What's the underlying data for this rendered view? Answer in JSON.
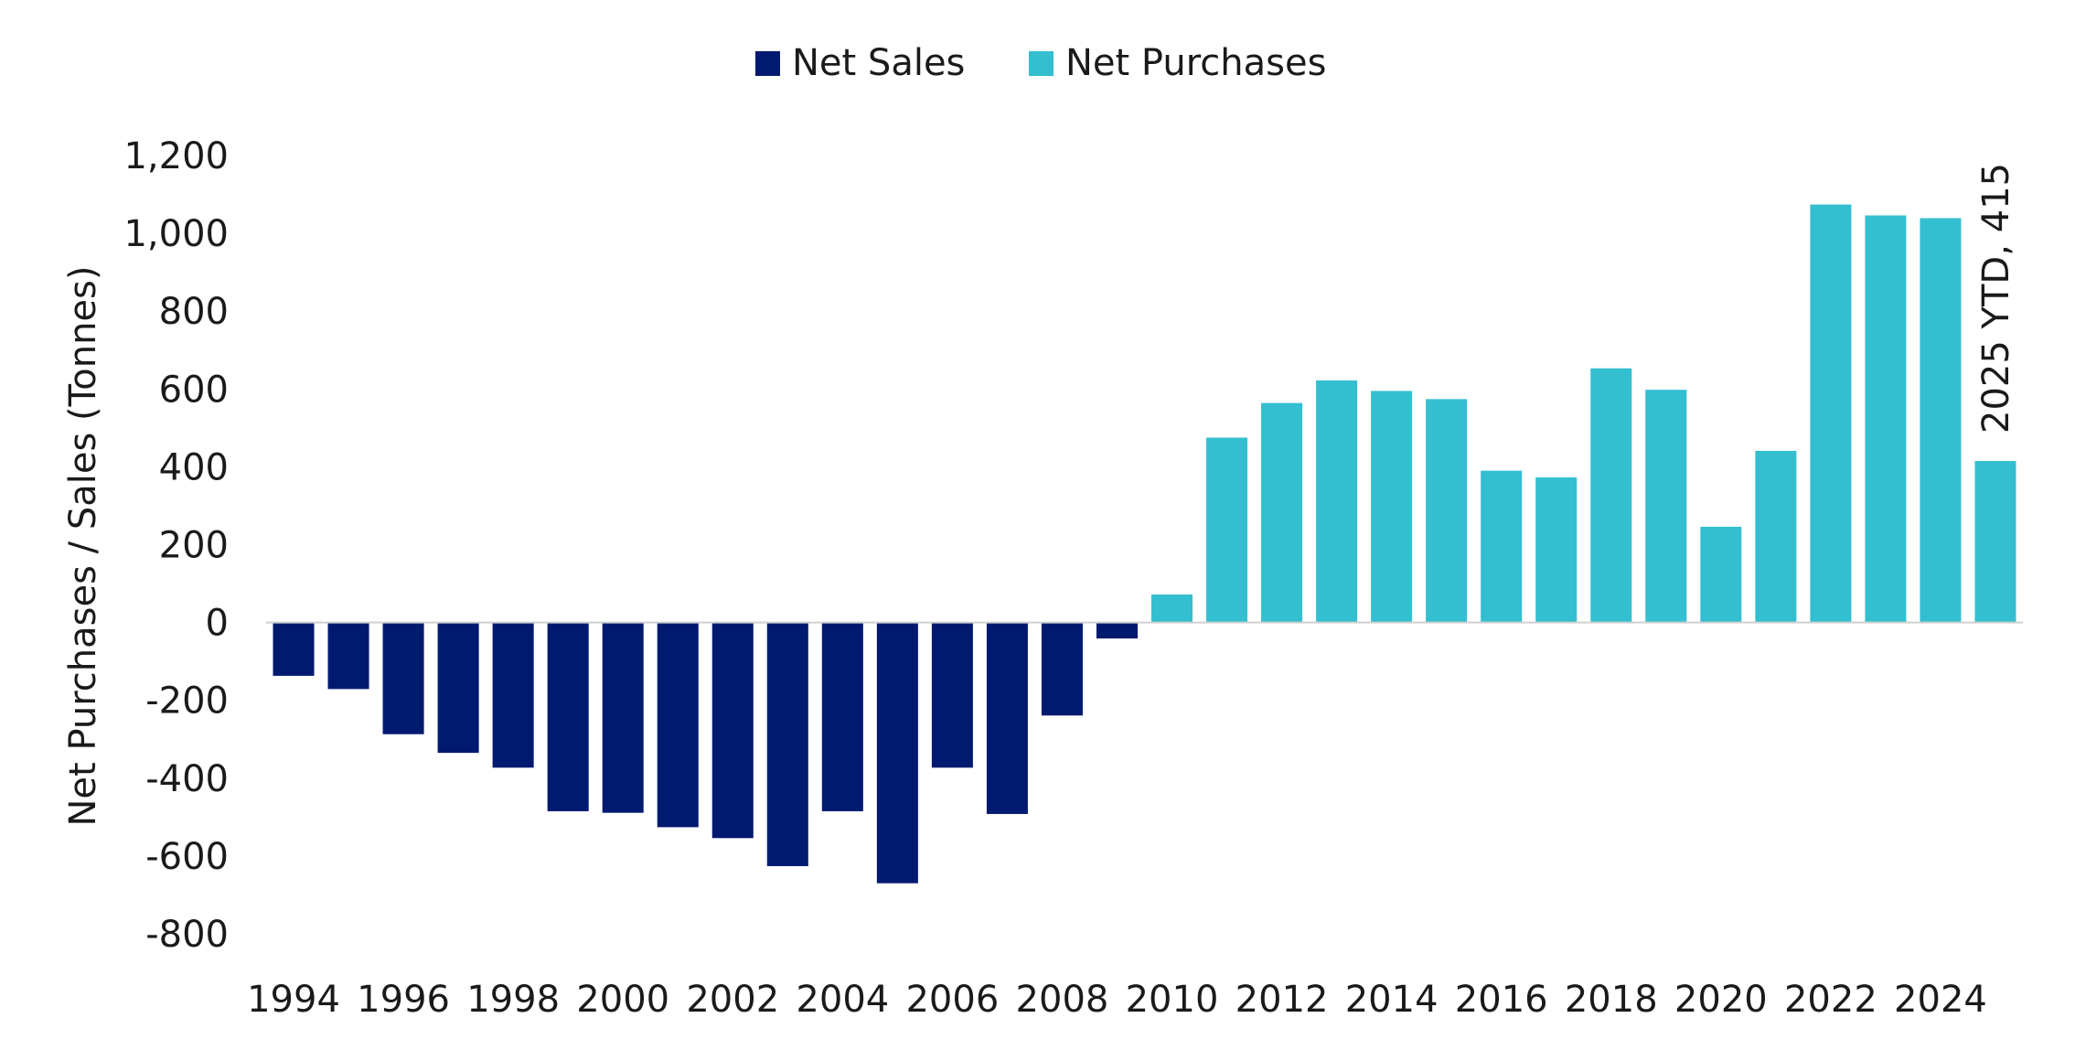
{
  "chart_data": {
    "type": "bar",
    "title": "",
    "xlabel": "",
    "ylabel": "Net Purchases / Sales (Tonnes)",
    "ylim": [
      -800,
      1200
    ],
    "yticks": [
      -800,
      -600,
      -400,
      -200,
      0,
      200,
      400,
      600,
      800,
      1000,
      1200
    ],
    "ytick_labels": [
      "-800",
      "-600",
      "-400",
      "-200",
      "0",
      "200",
      "400",
      "600",
      "800",
      "1,000",
      "1,200"
    ],
    "categories": [
      "1994",
      "1995",
      "1996",
      "1997",
      "1998",
      "1999",
      "2000",
      "2001",
      "2002",
      "2003",
      "2004",
      "2005",
      "2006",
      "2007",
      "2008",
      "2009",
      "2010",
      "2011",
      "2012",
      "2013",
      "2014",
      "2015",
      "2016",
      "2017",
      "2018",
      "2019",
      "2020",
      "2021",
      "2022",
      "2023",
      "2024",
      "2025"
    ],
    "xtick_labels": [
      "1994",
      "1996",
      "1998",
      "2000",
      "2002",
      "2004",
      "2006",
      "2008",
      "2010",
      "2012",
      "2014",
      "2016",
      "2018",
      "2020",
      "2022",
      "2024"
    ],
    "values": [
      -137,
      -171,
      -287,
      -335,
      -373,
      -485,
      -489,
      -526,
      -554,
      -626,
      -485,
      -670,
      -373,
      -492,
      -239,
      -41,
      72,
      475,
      564,
      622,
      595,
      574,
      390,
      373,
      653,
      598,
      246,
      441,
      1074,
      1046,
      1039,
      415
    ],
    "series": [
      {
        "name": "Net Sales",
        "color": "#001A70"
      },
      {
        "name": "Net Purchases",
        "color": "#33BFD0"
      }
    ],
    "legend_position": "top-center",
    "grid": false,
    "annotation": "2025 YTD, 415"
  }
}
